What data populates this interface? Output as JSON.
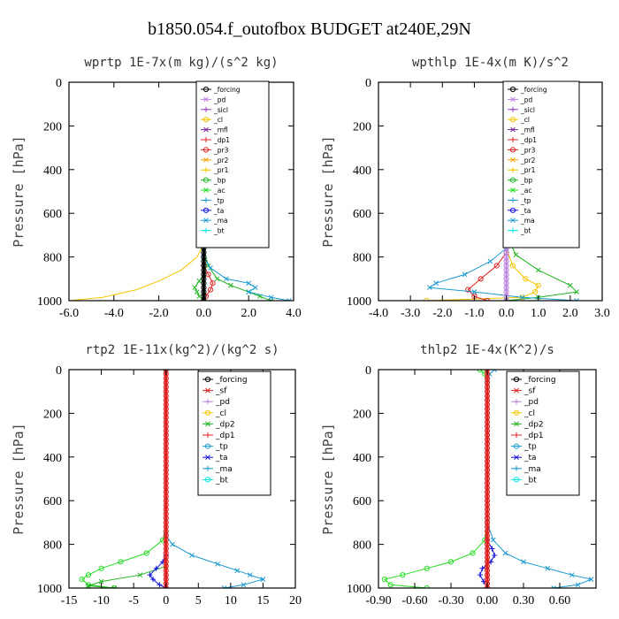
{
  "figure_title": "b1850.054.f_outofbox  BUDGET at240E,29N",
  "chart_data": [
    {
      "type": "line",
      "title": "wprtp  1E-7x(m kg)/(s^2 kg)",
      "ylabel": "Pressure [hPa]",
      "xlim": [
        -6,
        4
      ],
      "ylim": [
        1000,
        0
      ],
      "xticks": [
        "-6.0",
        "-4.0",
        "-2.0",
        "0.0",
        "2.0",
        "4.0"
      ],
      "xtick_values": [
        -6,
        -4,
        -2,
        0,
        2,
        4
      ],
      "yticks": [
        "0",
        "200",
        "400",
        "600",
        "800",
        "1000"
      ],
      "ytick_values": [
        0,
        200,
        400,
        600,
        800,
        1000
      ],
      "legend": [
        "_forcing",
        "_pd",
        "_sicl",
        "_cl",
        "_mfl",
        "_dp1",
        "_pr3",
        "_pr2",
        "_pr1",
        "_bp",
        "_ac",
        "_tp",
        "_ta",
        "_ma",
        "_bt"
      ],
      "series": [
        {
          "name": "_cl",
          "color": "#f5c400",
          "marker": "none",
          "x": [
            0,
            0,
            -0.3,
            -1.0,
            -2.0,
            -3.0,
            -4.5,
            -6.0
          ],
          "y": [
            0,
            740,
            800,
            860,
            910,
            950,
            985,
            1000
          ]
        },
        {
          "name": "_ac",
          "color": "#22b522",
          "marker": "x",
          "x": [
            0,
            0,
            0.2,
            0.6,
            1.2,
            2.0,
            2.5,
            3.0
          ],
          "y": [
            0,
            760,
            840,
            900,
            930,
            960,
            980,
            1000
          ]
        },
        {
          "name": "_bp",
          "color": "#22b522",
          "marker": "x",
          "x": [
            0,
            0,
            -0.2,
            -0.4,
            -0.3,
            -0.2,
            0
          ],
          "y": [
            0,
            880,
            910,
            940,
            960,
            980,
            1000
          ]
        },
        {
          "name": "_tp",
          "color": "#1a9ad0",
          "marker": "x",
          "x": [
            0,
            0,
            0.3,
            1.0,
            2.0,
            2.3,
            2.0,
            3.0,
            3.8
          ],
          "y": [
            0,
            800,
            850,
            900,
            920,
            940,
            960,
            985,
            1000
          ]
        },
        {
          "name": "_pr2",
          "color": "#e02020",
          "marker": "o",
          "x": [
            0,
            0,
            0.2,
            0.4,
            0.3,
            0.1,
            0
          ],
          "y": [
            0,
            840,
            880,
            920,
            950,
            980,
            1000
          ]
        },
        {
          "name": "_bt",
          "color": "#00e5e5",
          "marker": "none",
          "x": [
            0,
            0
          ],
          "y": [
            0,
            1000
          ]
        },
        {
          "name": "_forcing",
          "color": "#000000",
          "marker": "o",
          "x": [
            0,
            0
          ],
          "y": [
            0,
            1000
          ]
        }
      ]
    },
    {
      "type": "line",
      "title": "wpthlp  1E-4x(m K)/s^2",
      "ylabel": "Pressure [hPa]",
      "xlim": [
        -4,
        3
      ],
      "ylim": [
        1000,
        0
      ],
      "xticks": [
        "-4.0",
        "-3.0",
        "-2.0",
        "-1.0",
        "0.0",
        "1.0",
        "2.0",
        "3.0"
      ],
      "xtick_values": [
        -4,
        -3,
        -2,
        -1,
        0,
        1,
        2,
        3
      ],
      "yticks": [
        "0",
        "200",
        "400",
        "600",
        "800",
        "1000"
      ],
      "ytick_values": [
        0,
        200,
        400,
        600,
        800,
        1000
      ],
      "legend": [
        "_forcing",
        "_pd",
        "_sicl",
        "_cl",
        "_mfl",
        "_dp1",
        "_pr3",
        "_pr2",
        "_pr1",
        "_bp",
        "_ac",
        "_tp",
        "_ta",
        "_ma",
        "_bt"
      ],
      "series": [
        {
          "name": "_ac",
          "color": "#22b522",
          "marker": "x",
          "x": [
            0,
            0,
            0.3,
            1.0,
            2.0,
            2.2,
            1.0,
            0
          ],
          "y": [
            0,
            700,
            790,
            860,
            930,
            960,
            985,
            1000
          ]
        },
        {
          "name": "_cl",
          "color": "#f5c400",
          "marker": "o",
          "x": [
            0,
            0,
            0.2,
            0.6,
            1.0,
            0.9,
            0.5,
            -2.5
          ],
          "y": [
            0,
            760,
            840,
            900,
            930,
            960,
            985,
            1000
          ]
        },
        {
          "name": "_pr2",
          "color": "#e02020",
          "marker": "o",
          "x": [
            0,
            0,
            -0.3,
            -0.8,
            -1.2,
            -1.0,
            -0.6
          ],
          "y": [
            0,
            780,
            840,
            900,
            950,
            980,
            1000
          ]
        },
        {
          "name": "_tp",
          "color": "#1a9ad0",
          "marker": "x",
          "x": [
            0,
            0,
            -0.5,
            -1.3,
            -2.2,
            -2.4,
            -1.0,
            0.5,
            2.2
          ],
          "y": [
            0,
            760,
            820,
            880,
            920,
            940,
            960,
            985,
            1000
          ]
        },
        {
          "name": "_bt",
          "color": "#00e5e5",
          "marker": "none",
          "x": [
            0,
            0
          ],
          "y": [
            0,
            1000
          ]
        },
        {
          "name": "_pd",
          "color": "#c080e0",
          "marker": "o",
          "x": [
            0,
            0
          ],
          "y": [
            0,
            1000
          ]
        }
      ]
    },
    {
      "type": "line",
      "title": "rtp2  1E-11x(kg^2)/(kg^2 s)",
      "ylabel": "Pressure [hPa]",
      "xlim": [
        -15,
        20
      ],
      "ylim": [
        1000,
        0
      ],
      "xticks": [
        "-15",
        "-10",
        "-5",
        "0",
        "5",
        "10",
        "15",
        "20"
      ],
      "xtick_values": [
        -15,
        -10,
        -5,
        0,
        5,
        10,
        15,
        20
      ],
      "yticks": [
        "0",
        "200",
        "400",
        "600",
        "800",
        "1000"
      ],
      "ytick_values": [
        0,
        200,
        400,
        600,
        800,
        1000
      ],
      "legend": [
        "_forcing",
        "_sf",
        "_pd",
        "_cl",
        "_dp2",
        "_dp1",
        "_tp",
        "_ta",
        "_ma",
        "_bt"
      ],
      "series": [
        {
          "name": "_dp1",
          "color": "#22dd22",
          "marker": "o",
          "x": [
            0,
            0,
            -0.5,
            -3,
            -7,
            -10,
            -12,
            -13,
            -12,
            -8
          ],
          "y": [
            0,
            740,
            780,
            840,
            880,
            910,
            940,
            960,
            985,
            1000
          ]
        },
        {
          "name": "_dp2",
          "color": "#22b522",
          "marker": "x",
          "x": [
            0,
            0,
            -4,
            -10,
            -12,
            -8
          ],
          "y": [
            0,
            900,
            940,
            970,
            990,
            1000
          ]
        },
        {
          "name": "_tp",
          "color": "#1a9ad0",
          "marker": "x",
          "x": [
            0,
            0,
            1,
            4,
            8,
            11,
            13,
            15,
            12,
            9
          ],
          "y": [
            0,
            760,
            800,
            850,
            890,
            920,
            940,
            960,
            985,
            1000
          ]
        },
        {
          "name": "_ta",
          "color": "#1010dd",
          "marker": "+",
          "x": [
            0,
            0,
            -0.5,
            -1.5,
            -2.5,
            -2,
            -1,
            0
          ],
          "y": [
            0,
            850,
            880,
            910,
            940,
            960,
            985,
            1000
          ]
        },
        {
          "name": "_bt",
          "color": "#00e5e5",
          "marker": "none",
          "x": [
            0,
            0
          ],
          "y": [
            0,
            1000
          ]
        },
        {
          "name": "_forcing",
          "color": "#e02020",
          "marker": "o",
          "x": [
            0,
            0
          ],
          "y": [
            0,
            1000
          ]
        }
      ]
    },
    {
      "type": "line",
      "title": "thlp2  1E-4x(K^2)/s",
      "ylabel": "Pressure [hPa]",
      "xlim": [
        -0.9,
        0.9
      ],
      "ylim": [
        1000,
        0
      ],
      "xticks": [
        "-0.90",
        "-0.60",
        "-0.30",
        "0.00",
        "0.30",
        "0.60"
      ],
      "xtick_values": [
        -0.9,
        -0.6,
        -0.3,
        0,
        0.3,
        0.6
      ],
      "yticks": [
        "0",
        "200",
        "400",
        "600",
        "800",
        "1000"
      ],
      "ytick_values": [
        0,
        200,
        400,
        600,
        800,
        1000
      ],
      "legend": [
        "_forcing",
        "_sf",
        "_pd",
        "_cl",
        "_dp2",
        "_dp1",
        "_tp",
        "_ta",
        "_ma",
        "_bt"
      ],
      "series": [
        {
          "name": "_dp1",
          "color": "#22dd22",
          "marker": "o",
          "x": [
            -0.06,
            -0.02,
            0,
            0,
            -0.02,
            -0.12,
            -0.3,
            -0.5,
            -0.7,
            -0.85,
            -0.8,
            -0.5
          ],
          "y": [
            0,
            20,
            60,
            700,
            780,
            840,
            880,
            910,
            940,
            960,
            985,
            1000
          ]
        },
        {
          "name": "_tp",
          "color": "#1a9ad0",
          "marker": "x",
          "x": [
            0.06,
            0.02,
            0,
            0,
            0.05,
            0.15,
            0.3,
            0.5,
            0.7,
            0.86,
            0.75,
            0.55
          ],
          "y": [
            0,
            20,
            60,
            700,
            780,
            840,
            880,
            910,
            940,
            960,
            985,
            1000
          ]
        },
        {
          "name": "_ta",
          "color": "#1010dd",
          "marker": "+",
          "x": [
            0,
            0,
            0.04,
            0.06,
            0.03,
            -0.04,
            -0.06,
            -0.03,
            0
          ],
          "y": [
            0,
            780,
            820,
            850,
            880,
            910,
            940,
            970,
            1000
          ]
        },
        {
          "name": "_bt",
          "color": "#00e5e5",
          "marker": "none",
          "x": [
            0,
            0
          ],
          "y": [
            0,
            1000
          ]
        },
        {
          "name": "_forcing",
          "color": "#e02020",
          "marker": "o",
          "x": [
            0,
            0
          ],
          "y": [
            0,
            1000
          ]
        }
      ]
    }
  ]
}
